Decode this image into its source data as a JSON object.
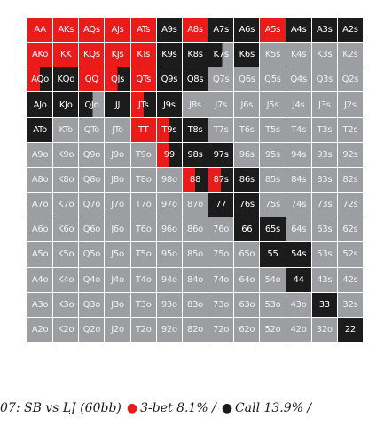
{
  "colors": {
    "raise": "#ea1b1b",
    "call": "#1c1c1c",
    "fold": "#9c9ea1"
  },
  "legend": {
    "raise_meaning": "3-bet",
    "call_meaning": "Call"
  },
  "grid": {
    "rows": [
      [
        {
          "hand": "AA",
          "action": "raise"
        },
        {
          "hand": "AKs",
          "action": "raise"
        },
        {
          "hand": "AQs",
          "action": "raise"
        },
        {
          "hand": "AJs",
          "action": "raise"
        },
        {
          "hand": "ATs",
          "action": "raise"
        },
        {
          "hand": "A9s",
          "action": "call"
        },
        {
          "hand": "A8s",
          "action": "raise"
        },
        {
          "hand": "A7s",
          "action": "call"
        },
        {
          "hand": "A6s",
          "action": "call"
        },
        {
          "hand": "A5s",
          "action": "raise"
        },
        {
          "hand": "A4s",
          "action": "call"
        },
        {
          "hand": "A3s",
          "action": "call"
        },
        {
          "hand": "A2s",
          "action": "call"
        }
      ],
      [
        {
          "hand": "AKo",
          "action": "raise"
        },
        {
          "hand": "KK",
          "action": "raise"
        },
        {
          "hand": "KQs",
          "action": "raise"
        },
        {
          "hand": "KJs",
          "action": "raise"
        },
        {
          "hand": "KTs",
          "action": "raise"
        },
        {
          "hand": "K9s",
          "action": "call"
        },
        {
          "hand": "K8s",
          "action": "call"
        },
        {
          "hand": "K7s",
          "action": "half-cf"
        },
        {
          "hand": "K6s",
          "action": "call"
        },
        {
          "hand": "K5s",
          "action": "fold"
        },
        {
          "hand": "K4s",
          "action": "fold"
        },
        {
          "hand": "K3s",
          "action": "fold"
        },
        {
          "hand": "K2s",
          "action": "fold"
        }
      ],
      [
        {
          "hand": "AQo",
          "action": "half-rc"
        },
        {
          "hand": "KQo",
          "action": "call"
        },
        {
          "hand": "QQ",
          "action": "raise"
        },
        {
          "hand": "QJs",
          "action": "half-rc"
        },
        {
          "hand": "QTs",
          "action": "raise"
        },
        {
          "hand": "Q9s",
          "action": "call"
        },
        {
          "hand": "Q8s",
          "action": "call"
        },
        {
          "hand": "Q7s",
          "action": "fold"
        },
        {
          "hand": "Q6s",
          "action": "fold"
        },
        {
          "hand": "Q5s",
          "action": "fold"
        },
        {
          "hand": "Q4s",
          "action": "fold"
        },
        {
          "hand": "Q3s",
          "action": "fold"
        },
        {
          "hand": "Q2s",
          "action": "fold"
        }
      ],
      [
        {
          "hand": "AJo",
          "action": "call"
        },
        {
          "hand": "KJo",
          "action": "call"
        },
        {
          "hand": "QJo",
          "action": "half-cf"
        },
        {
          "hand": "JJ",
          "action": "call"
        },
        {
          "hand": "JTs",
          "action": "half-rc"
        },
        {
          "hand": "J9s",
          "action": "call"
        },
        {
          "hand": "J8s",
          "action": "fold"
        },
        {
          "hand": "J7s",
          "action": "fold"
        },
        {
          "hand": "J6s",
          "action": "fold"
        },
        {
          "hand": "J5s",
          "action": "fold"
        },
        {
          "hand": "J4s",
          "action": "fold"
        },
        {
          "hand": "J3s",
          "action": "fold"
        },
        {
          "hand": "J2s",
          "action": "fold"
        }
      ],
      [
        {
          "hand": "ATo",
          "action": "call"
        },
        {
          "hand": "KTo",
          "action": "fold"
        },
        {
          "hand": "QTo",
          "action": "fold"
        },
        {
          "hand": "JTo",
          "action": "fold"
        },
        {
          "hand": "TT",
          "action": "raise"
        },
        {
          "hand": "T9s",
          "action": "half-rc"
        },
        {
          "hand": "T8s",
          "action": "call"
        },
        {
          "hand": "T7s",
          "action": "fold"
        },
        {
          "hand": "T6s",
          "action": "fold"
        },
        {
          "hand": "T5s",
          "action": "fold"
        },
        {
          "hand": "T4s",
          "action": "fold"
        },
        {
          "hand": "T3s",
          "action": "fold"
        },
        {
          "hand": "T2s",
          "action": "fold"
        }
      ],
      [
        {
          "hand": "A9o",
          "action": "fold"
        },
        {
          "hand": "K9o",
          "action": "fold"
        },
        {
          "hand": "Q9o",
          "action": "fold"
        },
        {
          "hand": "J9o",
          "action": "fold"
        },
        {
          "hand": "T9o",
          "action": "fold"
        },
        {
          "hand": "99",
          "action": "half-rc"
        },
        {
          "hand": "98s",
          "action": "call"
        },
        {
          "hand": "97s",
          "action": "call"
        },
        {
          "hand": "96s",
          "action": "fold"
        },
        {
          "hand": "95s",
          "action": "fold"
        },
        {
          "hand": "94s",
          "action": "fold"
        },
        {
          "hand": "93s",
          "action": "fold"
        },
        {
          "hand": "92s",
          "action": "fold"
        }
      ],
      [
        {
          "hand": "A8o",
          "action": "fold"
        },
        {
          "hand": "K8o",
          "action": "fold"
        },
        {
          "hand": "Q8o",
          "action": "fold"
        },
        {
          "hand": "J8o",
          "action": "fold"
        },
        {
          "hand": "T8o",
          "action": "fold"
        },
        {
          "hand": "98o",
          "action": "fold"
        },
        {
          "hand": "88",
          "action": "half-rc"
        },
        {
          "hand": "87s",
          "action": "half-rc"
        },
        {
          "hand": "86s",
          "action": "call"
        },
        {
          "hand": "85s",
          "action": "fold"
        },
        {
          "hand": "84s",
          "action": "fold"
        },
        {
          "hand": "83s",
          "action": "fold"
        },
        {
          "hand": "82s",
          "action": "fold"
        }
      ],
      [
        {
          "hand": "A7o",
          "action": "fold"
        },
        {
          "hand": "K7o",
          "action": "fold"
        },
        {
          "hand": "Q7o",
          "action": "fold"
        },
        {
          "hand": "J7o",
          "action": "fold"
        },
        {
          "hand": "T7o",
          "action": "fold"
        },
        {
          "hand": "97o",
          "action": "fold"
        },
        {
          "hand": "87o",
          "action": "fold"
        },
        {
          "hand": "77",
          "action": "call"
        },
        {
          "hand": "76s",
          "action": "call"
        },
        {
          "hand": "75s",
          "action": "fold"
        },
        {
          "hand": "74s",
          "action": "fold"
        },
        {
          "hand": "73s",
          "action": "fold"
        },
        {
          "hand": "72s",
          "action": "fold"
        }
      ],
      [
        {
          "hand": "A6o",
          "action": "fold"
        },
        {
          "hand": "K6o",
          "action": "fold"
        },
        {
          "hand": "Q6o",
          "action": "fold"
        },
        {
          "hand": "J6o",
          "action": "fold"
        },
        {
          "hand": "T6o",
          "action": "fold"
        },
        {
          "hand": "96o",
          "action": "fold"
        },
        {
          "hand": "86o",
          "action": "fold"
        },
        {
          "hand": "76o",
          "action": "fold"
        },
        {
          "hand": "66",
          "action": "call"
        },
        {
          "hand": "65s",
          "action": "call"
        },
        {
          "hand": "64s",
          "action": "fold"
        },
        {
          "hand": "63s",
          "action": "fold"
        },
        {
          "hand": "62s",
          "action": "fold"
        }
      ],
      [
        {
          "hand": "A5o",
          "action": "fold"
        },
        {
          "hand": "K5o",
          "action": "fold"
        },
        {
          "hand": "Q5o",
          "action": "fold"
        },
        {
          "hand": "J5o",
          "action": "fold"
        },
        {
          "hand": "T5o",
          "action": "fold"
        },
        {
          "hand": "95o",
          "action": "fold"
        },
        {
          "hand": "85o",
          "action": "fold"
        },
        {
          "hand": "75o",
          "action": "fold"
        },
        {
          "hand": "65o",
          "action": "fold"
        },
        {
          "hand": "55",
          "action": "call"
        },
        {
          "hand": "54s",
          "action": "call"
        },
        {
          "hand": "53s",
          "action": "fold"
        },
        {
          "hand": "52s",
          "action": "fold"
        }
      ],
      [
        {
          "hand": "A4o",
          "action": "fold"
        },
        {
          "hand": "K4o",
          "action": "fold"
        },
        {
          "hand": "Q4o",
          "action": "fold"
        },
        {
          "hand": "J4o",
          "action": "fold"
        },
        {
          "hand": "T4o",
          "action": "fold"
        },
        {
          "hand": "94o",
          "action": "fold"
        },
        {
          "hand": "84o",
          "action": "fold"
        },
        {
          "hand": "74o",
          "action": "fold"
        },
        {
          "hand": "64o",
          "action": "fold"
        },
        {
          "hand": "54o",
          "action": "fold"
        },
        {
          "hand": "44",
          "action": "call"
        },
        {
          "hand": "43s",
          "action": "fold"
        },
        {
          "hand": "42s",
          "action": "fold"
        }
      ],
      [
        {
          "hand": "A3o",
          "action": "fold"
        },
        {
          "hand": "K3o",
          "action": "fold"
        },
        {
          "hand": "Q3o",
          "action": "fold"
        },
        {
          "hand": "J3o",
          "action": "fold"
        },
        {
          "hand": "T3o",
          "action": "fold"
        },
        {
          "hand": "93o",
          "action": "fold"
        },
        {
          "hand": "83o",
          "action": "fold"
        },
        {
          "hand": "73o",
          "action": "fold"
        },
        {
          "hand": "63o",
          "action": "fold"
        },
        {
          "hand": "53o",
          "action": "fold"
        },
        {
          "hand": "43o",
          "action": "fold"
        },
        {
          "hand": "33",
          "action": "call"
        },
        {
          "hand": "32s",
          "action": "fold"
        }
      ],
      [
        {
          "hand": "A2o",
          "action": "fold"
        },
        {
          "hand": "K2o",
          "action": "fold"
        },
        {
          "hand": "Q2o",
          "action": "fold"
        },
        {
          "hand": "J2o",
          "action": "fold"
        },
        {
          "hand": "T2o",
          "action": "fold"
        },
        {
          "hand": "92o",
          "action": "fold"
        },
        {
          "hand": "82o",
          "action": "fold"
        },
        {
          "hand": "72o",
          "action": "fold"
        },
        {
          "hand": "62o",
          "action": "fold"
        },
        {
          "hand": "52o",
          "action": "fold"
        },
        {
          "hand": "42o",
          "action": "fold"
        },
        {
          "hand": "32o",
          "action": "fold"
        },
        {
          "hand": "22",
          "action": "call"
        }
      ]
    ]
  },
  "caption": {
    "prefix": "07: SB vs LJ (60bb)",
    "raise_dot": "●",
    "raise_text": "3-bet 8.1% /",
    "call_dot": "●",
    "call_text": "Call 13.9% /"
  }
}
